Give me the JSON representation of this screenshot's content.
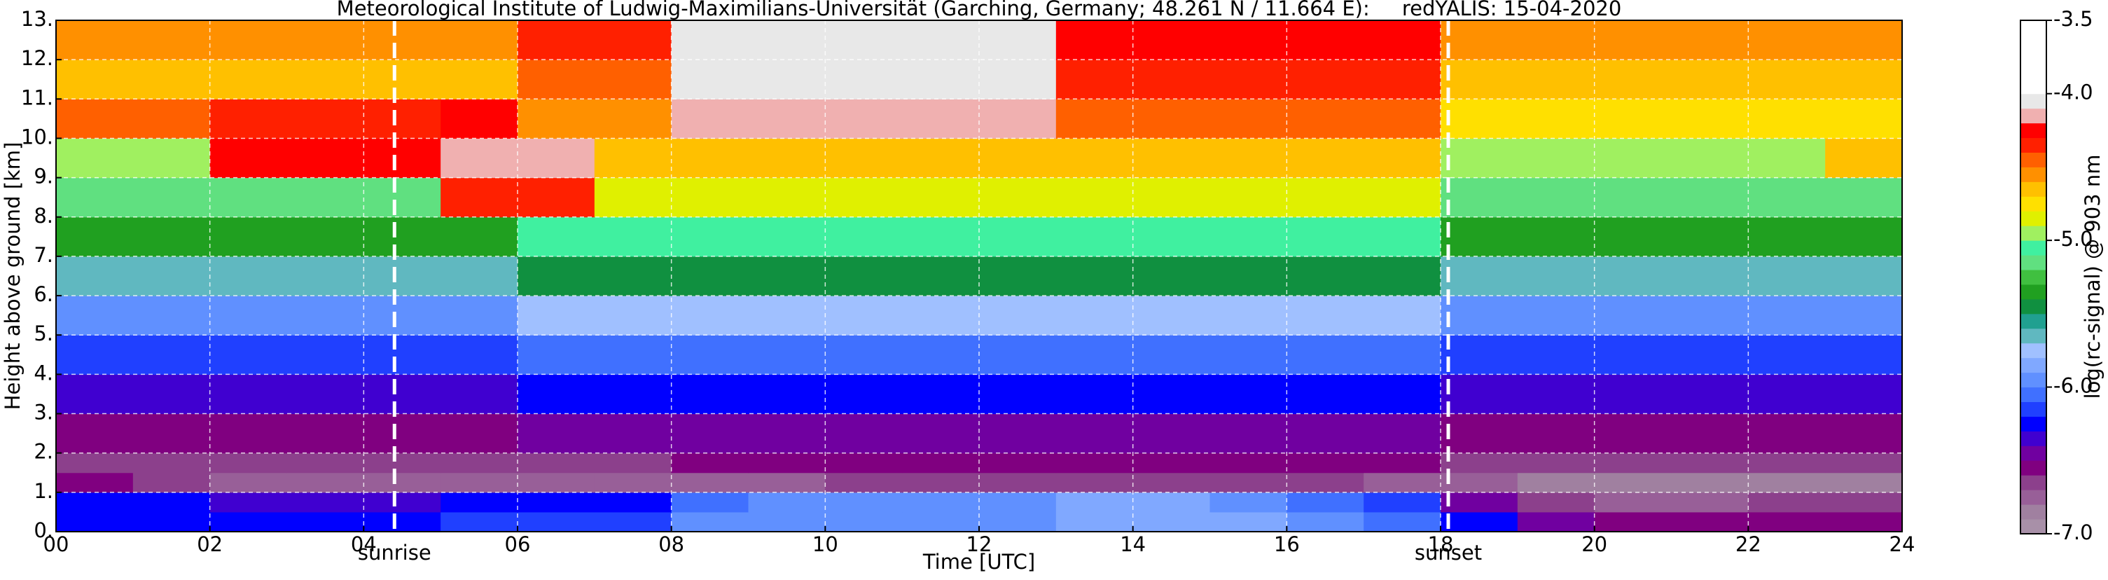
{
  "chart_data": {
    "type": "heatmap",
    "title": "Meteorological Institute of Ludwig-Maximilians-Universität (Garching, Germany; 48.261 N / 11.664 E):     redYALIS: 15-04-2020",
    "x_label": "Time [UTC]",
    "y_label": "Height above ground [km]",
    "colorbar_label": "log(rc-signal) @ 903 nm",
    "x_bins": [
      0,
      1,
      2,
      3,
      4,
      5,
      6,
      7,
      8,
      9,
      10,
      11,
      12,
      13,
      14,
      15,
      16,
      17,
      18,
      19,
      20,
      21,
      22,
      23,
      24
    ],
    "y_bins": [
      0,
      0.5,
      1,
      1.5,
      2,
      3,
      4,
      5,
      6,
      7,
      8,
      9,
      10,
      11,
      12,
      13
    ],
    "values": [
      [
        -6.3,
        -6.3,
        -6.3,
        -6.3,
        -6.3,
        -6.2,
        -6.2,
        -6.2,
        -6.0,
        -6.0,
        -6.0,
        -6.0,
        -6.0,
        -5.9,
        -5.9,
        -5.9,
        -6.0,
        -6.1,
        -6.3,
        -6.5,
        -6.6,
        -6.6,
        -6.6,
        -6.6
      ],
      [
        -6.3,
        -6.3,
        -6.4,
        -6.4,
        -6.4,
        -6.3,
        -6.3,
        -6.3,
        -6.1,
        -6.0,
        -6.0,
        -6.0,
        -6.0,
        -5.9,
        -5.9,
        -6.0,
        -6.1,
        -6.2,
        -6.5,
        -6.7,
        -6.8,
        -6.8,
        -6.7,
        -6.7
      ],
      [
        -6.6,
        -6.7,
        -6.8,
        -6.8,
        -6.8,
        -6.8,
        -6.8,
        -6.8,
        -6.8,
        -6.8,
        -6.7,
        -6.7,
        -6.7,
        -6.7,
        -6.7,
        -6.7,
        -6.7,
        -6.8,
        -6.8,
        -6.9,
        -6.9,
        -6.9,
        -6.9,
        -6.9
      ],
      [
        -6.7,
        -6.7,
        -6.7,
        -6.7,
        -6.7,
        -6.7,
        -6.7,
        -6.7,
        -6.6,
        -6.6,
        -6.6,
        -6.6,
        -6.6,
        -6.6,
        -6.6,
        -6.6,
        -6.6,
        -6.6,
        -6.7,
        -6.7,
        -6.7,
        -6.7,
        -6.7,
        -6.7
      ],
      [
        -6.6,
        -6.6,
        -6.6,
        -6.6,
        -6.6,
        -6.6,
        -6.5,
        -6.5,
        -6.5,
        -6.5,
        -6.5,
        -6.5,
        -6.5,
        -6.5,
        -6.5,
        -6.5,
        -6.5,
        -6.5,
        -6.6,
        -6.6,
        -6.6,
        -6.6,
        -6.6,
        -6.6
      ],
      [
        -6.4,
        -6.4,
        -6.4,
        -6.4,
        -6.4,
        -6.4,
        -6.3,
        -6.3,
        -6.3,
        -6.3,
        -6.3,
        -6.3,
        -6.3,
        -6.3,
        -6.3,
        -6.3,
        -6.3,
        -6.3,
        -6.4,
        -6.4,
        -6.4,
        -6.4,
        -6.4,
        -6.4
      ],
      [
        -6.2,
        -6.2,
        -6.2,
        -6.2,
        -6.2,
        -6.2,
        -6.1,
        -6.1,
        -6.1,
        -6.1,
        -6.1,
        -6.1,
        -6.1,
        -6.1,
        -6.1,
        -6.1,
        -6.1,
        -6.1,
        -6.2,
        -6.2,
        -6.2,
        -6.2,
        -6.2,
        -6.2
      ],
      [
        -6.0,
        -6.0,
        -6.0,
        -6.0,
        -6.0,
        -6.0,
        -5.8,
        -5.8,
        -5.8,
        -5.8,
        -5.8,
        -5.8,
        -5.8,
        -5.8,
        -5.8,
        -5.8,
        -5.8,
        -5.8,
        -6.0,
        -6.0,
        -6.0,
        -6.0,
        -6.0,
        -6.0
      ],
      [
        -5.7,
        -5.7,
        -5.7,
        -5.7,
        -5.7,
        -5.7,
        -5.5,
        -5.5,
        -5.5,
        -5.5,
        -5.5,
        -5.5,
        -5.5,
        -5.5,
        -5.5,
        -5.5,
        -5.5,
        -5.5,
        -5.7,
        -5.7,
        -5.7,
        -5.7,
        -5.7,
        -5.7
      ],
      [
        -5.4,
        -5.4,
        -5.4,
        -5.4,
        -5.4,
        -5.4,
        -5.1,
        -5.1,
        -5.1,
        -5.1,
        -5.1,
        -5.1,
        -5.1,
        -5.1,
        -5.1,
        -5.1,
        -5.1,
        -5.1,
        -5.4,
        -5.4,
        -5.4,
        -5.4,
        -5.4,
        -5.4
      ],
      [
        -5.2,
        -5.2,
        -5.2,
        -5.2,
        -5.2,
        -4.4,
        -4.4,
        -4.9,
        -4.9,
        -4.9,
        -4.9,
        -4.9,
        -4.9,
        -4.9,
        -4.9,
        -4.9,
        -4.9,
        -4.9,
        -5.2,
        -5.2,
        -5.2,
        -5.2,
        -5.2,
        -5.2
      ],
      [
        -5.0,
        -5.0,
        -4.3,
        -4.3,
        -4.3,
        -4.2,
        -4.2,
        -4.7,
        -4.7,
        -4.7,
        -4.7,
        -4.7,
        -4.7,
        -4.7,
        -4.7,
        -4.7,
        -4.7,
        -4.7,
        -5.0,
        -5.0,
        -5.0,
        -5.0,
        -5.0,
        -4.7
      ],
      [
        -4.5,
        -4.5,
        -4.4,
        -4.4,
        -4.4,
        -4.3,
        -4.6,
        -4.6,
        -4.2,
        -4.2,
        -4.2,
        -4.2,
        -4.2,
        -4.5,
        -4.5,
        -4.5,
        -4.5,
        -4.5,
        -4.8,
        -4.8,
        -4.8,
        -4.8,
        -4.8,
        -4.8
      ],
      [
        -4.7,
        -4.7,
        -4.7,
        -4.7,
        -4.7,
        -4.7,
        -4.5,
        -4.5,
        -4.1,
        -4.1,
        -4.1,
        -4.1,
        -4.1,
        -4.4,
        -4.4,
        -4.4,
        -4.4,
        -4.4,
        -4.7,
        -4.7,
        -4.7,
        -4.7,
        -4.7,
        -4.7
      ],
      [
        -4.6,
        -4.6,
        -4.6,
        -4.6,
        -4.6,
        -4.6,
        -4.4,
        -4.4,
        -4.1,
        -4.1,
        -4.1,
        -4.1,
        -4.1,
        -4.3,
        -4.3,
        -4.3,
        -4.3,
        -4.3,
        -4.6,
        -4.6,
        -4.6,
        -4.6,
        -4.6,
        -4.6
      ]
    ],
    "xlim": [
      0,
      24
    ],
    "ylim": [
      0,
      13
    ],
    "xticks": [
      {
        "value": 0,
        "label": "00"
      },
      {
        "value": 2,
        "label": "02"
      },
      {
        "value": 4,
        "label": "04"
      },
      {
        "value": 6,
        "label": "06"
      },
      {
        "value": 8,
        "label": "08"
      },
      10,
      12,
      14,
      16,
      18,
      20,
      22,
      24
    ],
    "yticks": [
      {
        "value": 0,
        "label": "0."
      },
      {
        "value": 1,
        "label": "1."
      },
      {
        "value": 2,
        "label": "2."
      },
      {
        "value": 3,
        "label": "3."
      },
      {
        "value": 4,
        "label": "4."
      },
      {
        "value": 5,
        "label": "5."
      },
      {
        "value": 6,
        "label": "6."
      },
      {
        "value": 7,
        "label": "7."
      },
      {
        "value": 8,
        "label": "8."
      },
      {
        "value": 9,
        "label": "9."
      },
      {
        "value": 10,
        "label": "10."
      },
      {
        "value": 11,
        "label": "11."
      },
      {
        "value": 12,
        "label": "12."
      },
      {
        "value": 13,
        "label": "13."
      }
    ],
    "grid": true,
    "clim": [
      -7,
      -3.5
    ],
    "colors": [
      "#a890a8",
      "#a080a0",
      "#985f98",
      "#8c408c",
      "#800080",
      "#7000a0",
      "#4000d0",
      "#0000ff",
      "#2040ff",
      "#4070ff",
      "#6090ff",
      "#80a8ff",
      "#a0c0ff",
      "#60b8c0",
      "#20a090",
      "#109040",
      "#20a020",
      "#40c040",
      "#60e080",
      "#40f0a0",
      "#a0f060",
      "#e0f000",
      "#ffe000",
      "#ffc000",
      "#ff9000",
      "#ff6000",
      "#ff2000",
      "#ff0000",
      "#f0b0b0",
      "#e8e8e8",
      "#ffffff",
      "#ffffff",
      "#ffffff",
      "#ffffff",
      "#ffffff"
    ],
    "cticks": [
      {
        "value": -3.5,
        "label": "-3.5"
      },
      {
        "value": -4,
        "label": "-4.0"
      },
      {
        "value": -5,
        "label": "-5.0"
      },
      {
        "value": -6,
        "label": "-6.0"
      },
      {
        "value": -7,
        "label": "-7.0"
      }
    ],
    "vlines": [
      {
        "x": 4.4,
        "label": "sunrise"
      },
      {
        "x": 18.1,
        "label": "sunset"
      }
    ]
  }
}
